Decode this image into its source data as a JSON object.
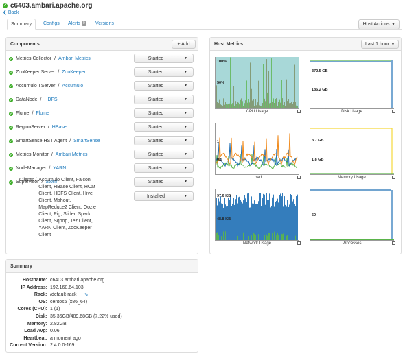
{
  "header": {
    "host": "c6403.ambari.apache.org",
    "back": "Back"
  },
  "tabs": [
    {
      "label": "Summary"
    },
    {
      "label": "Configs"
    },
    {
      "label": "Alerts"
    },
    {
      "label": "Versions"
    }
  ],
  "alerts_badge": "0",
  "host_actions": "Host Actions",
  "components": {
    "title": "Components",
    "add": "+ Add",
    "rows": [
      {
        "name": "Metrics Collector",
        "service": "Ambari Metrics",
        "state": "Started"
      },
      {
        "name": "ZooKeeper Server",
        "service": "ZooKeeper",
        "state": "Started"
      },
      {
        "name": "Accumulo TServer",
        "service": "Accumulo",
        "state": "Started"
      },
      {
        "name": "DataNode",
        "service": "HDFS",
        "state": "Started"
      },
      {
        "name": "Flume",
        "service": "Flume",
        "state": "Started"
      },
      {
        "name": "RegionServer",
        "service": "HBase",
        "state": "Started"
      },
      {
        "name": "SmartSense HST Agent",
        "service": "SmartSense",
        "state": "Started"
      },
      {
        "name": "Metrics Monitor",
        "service": "Ambari Metrics",
        "state": "Started"
      },
      {
        "name": "NodeManager",
        "service": "YARN",
        "state": "Started"
      },
      {
        "name": "Supervisor",
        "service": "Storm",
        "state": "Started"
      }
    ],
    "clients_label": "Clients /",
    "clients_lines": [
      "Accumulo Client, Falcon",
      "Client, HBase Client, HCat",
      "Client, HDFS Client, Hive",
      "Client, Mahout,",
      "MapReduce2 Client, Oozie",
      "Client, Pig, Slider, Spark",
      "Client, Sqoop, Tez Client,",
      "YARN Client, ZooKeeper",
      "Client"
    ],
    "clients_state": "Installed"
  },
  "summary": {
    "title": "Summary",
    "rows": [
      {
        "k": "Hostname:",
        "v": "c6403.ambari.apache.org"
      },
      {
        "k": "IP Address:",
        "v": "192.168.64.103"
      },
      {
        "k": "Rack:",
        "v": "/default-rack"
      },
      {
        "k": "OS:",
        "v": "centos6 (x86_64)"
      },
      {
        "k": "Cores (CPU):",
        "v": "1 (1)"
      },
      {
        "k": "Disk:",
        "v": "35.36GB/489.68GB (7.22% used)"
      },
      {
        "k": "Memory:",
        "v": "2.82GB"
      },
      {
        "k": "Load Avg:",
        "v": "0.06"
      },
      {
        "k": "Heartbeat:",
        "v": "a moment ago"
      },
      {
        "k": "Current Version:",
        "v": "2.4.0.0-169"
      }
    ]
  },
  "host_metrics": {
    "title": "Host Metrics",
    "range": "Last 1 hour",
    "charts": [
      {
        "title": "CPU Usage",
        "labels": [
          "100%",
          "50%"
        ]
      },
      {
        "title": "Disk Usage",
        "labels": [
          "372.5 GB",
          "186.2 GB"
        ]
      },
      {
        "title": "Load",
        "labels": [
          "1",
          "0.5"
        ]
      },
      {
        "title": "Memory Usage",
        "labels": [
          "3.7 GB",
          "1.8 GB"
        ]
      },
      {
        "title": "Network Usage",
        "labels": [
          "97.6 KB",
          "48.8 KB"
        ]
      },
      {
        "title": "Processes",
        "labels": [
          "50"
        ]
      }
    ]
  },
  "colors": {
    "link": "#1f7bbd",
    "ok": "#3fae2a",
    "cpu_fill": "#a8d8d8",
    "series_green": "#5ab44a",
    "series_orange": "#f08a1c",
    "series_blue": "#1e6fb5",
    "series_yellow": "#f5d83a",
    "series_olive": "#7a8a5a"
  },
  "chart_data": [
    {
      "type": "area",
      "title": "CPU Usage"
    },
    {
      "type": "line",
      "title": "Disk Usage"
    },
    {
      "type": "line",
      "title": "Load"
    },
    {
      "type": "area",
      "title": "Memory Usage"
    },
    {
      "type": "area",
      "title": "Network Usage"
    },
    {
      "type": "line",
      "title": "Processes"
    }
  ]
}
